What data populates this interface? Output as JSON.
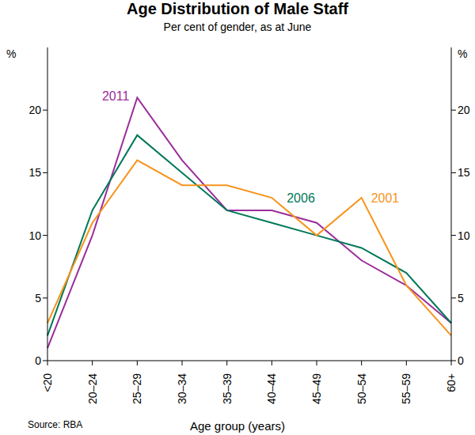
{
  "chart_data": {
    "type": "line",
    "title": "Age Distribution of Male Staff",
    "subtitle": "Per cent of gender, as at June",
    "x_label": "Age group (years)",
    "y_label": "%",
    "y2_label": "%",
    "source": "Source: RBA",
    "categories": [
      "<20",
      "20–24",
      "25–29",
      "30–34",
      "35–39",
      "40–44",
      "45–49",
      "50–54",
      "55–59",
      "60+"
    ],
    "series": [
      {
        "name": "2011",
        "color": "#9b2d9b",
        "values": [
          1,
          10,
          21,
          16,
          12,
          12,
          11,
          8,
          6,
          3
        ]
      },
      {
        "name": "2006",
        "color": "#00785a",
        "values": [
          2,
          12,
          18,
          15,
          12,
          11,
          10,
          9,
          7,
          3
        ]
      },
      {
        "name": "2001",
        "color": "#f7941d",
        "values": [
          3,
          11,
          16,
          14,
          14,
          13,
          10,
          13,
          6,
          2
        ]
      }
    ],
    "ylim": [
      0,
      25
    ],
    "yticks": [
      0,
      5,
      10,
      15,
      20
    ],
    "y2lim": [
      0,
      25
    ],
    "y2ticks": [
      0,
      5,
      10,
      15,
      20
    ],
    "grid": false
  }
}
